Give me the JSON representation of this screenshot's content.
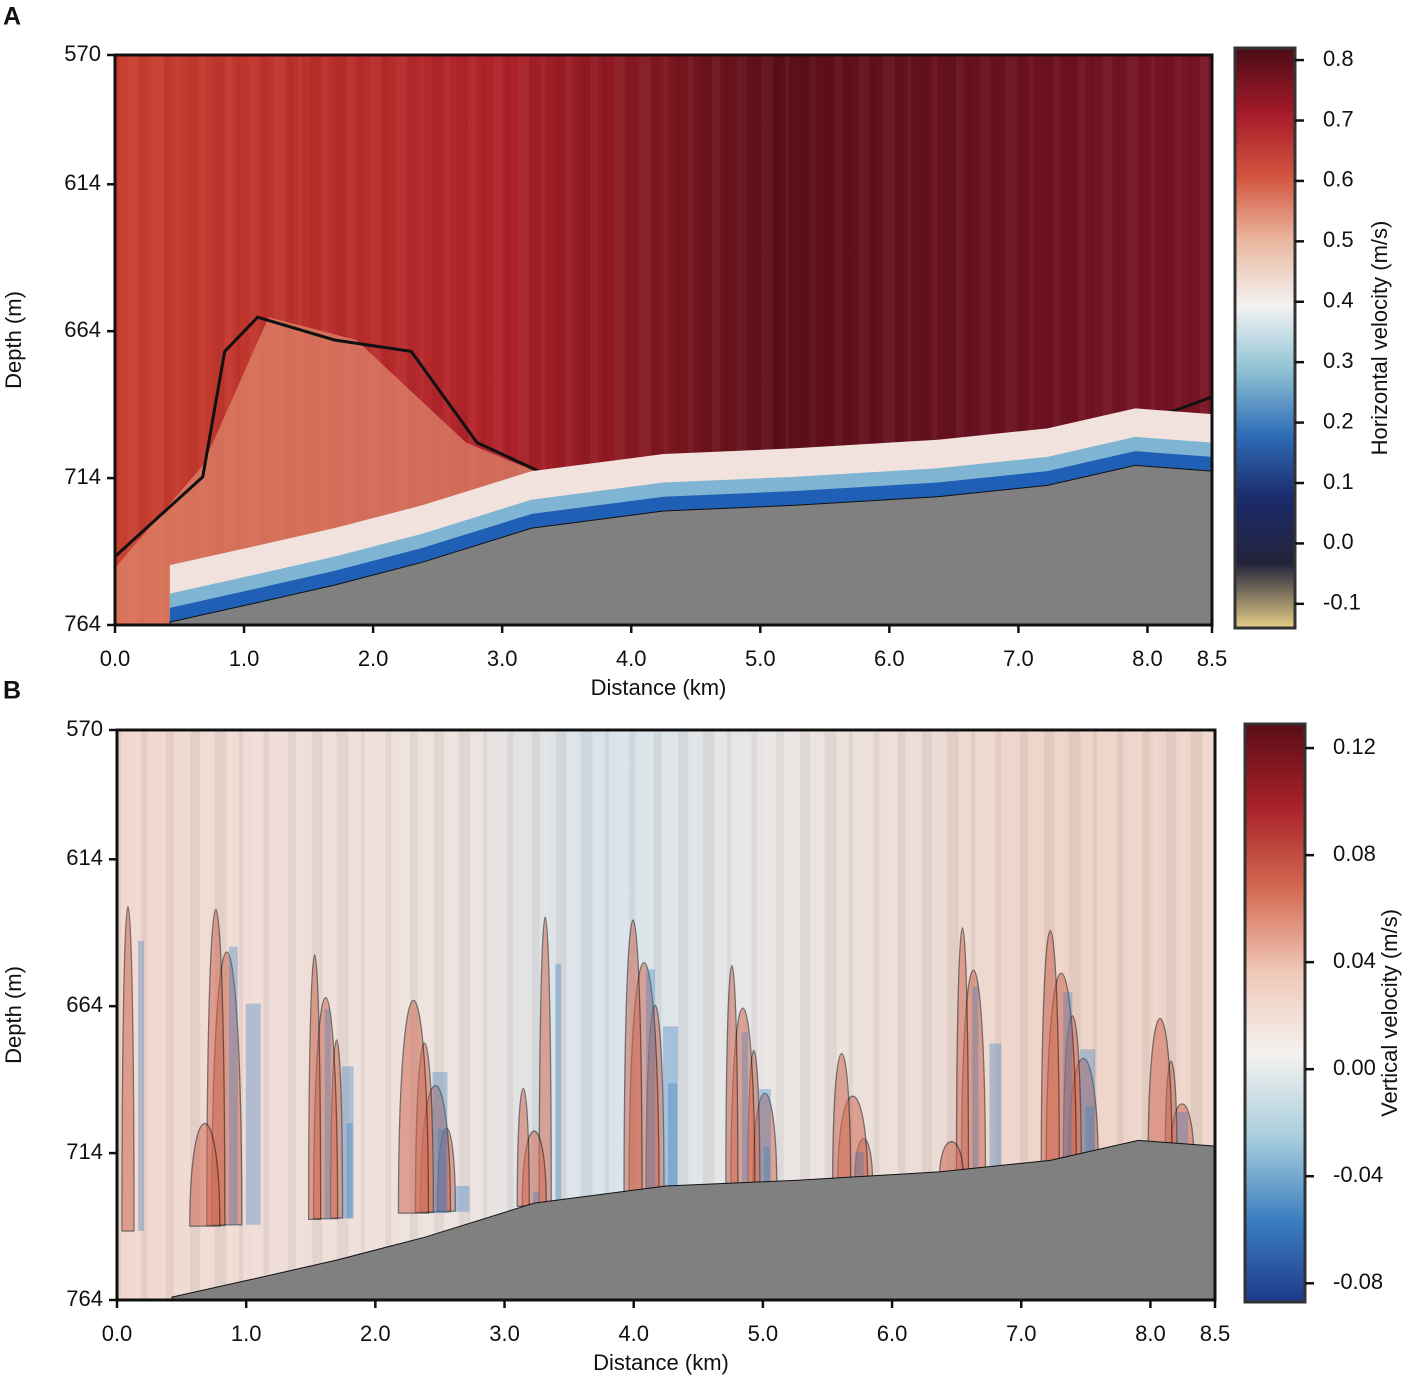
{
  "chart_data": [
    {
      "type": "heatmap",
      "panel_label": "A",
      "xlabel": "Distance (km)",
      "ylabel": "Depth (m)",
      "xlim": [
        0,
        8.5
      ],
      "xticks": [
        {
          "value": 0,
          "label": "0.0"
        },
        {
          "value": 1,
          "label": "1.0"
        },
        {
          "value": 2,
          "label": "2.0"
        },
        {
          "value": 3,
          "label": "3.0"
        },
        {
          "value": 4,
          "label": "4.0"
        },
        {
          "value": 5,
          "label": "5.0"
        },
        {
          "value": 6,
          "label": "6.0"
        },
        {
          "value": 7,
          "label": "7.0"
        },
        {
          "value": 8,
          "label": "8.0"
        },
        8.5
      ],
      "ylim": [
        570,
        764
      ],
      "yticks": [
        570,
        614,
        664,
        714,
        764
      ],
      "y_inverted": true,
      "colorbar": {
        "label": "Horizontal velocity (m/s)",
        "lim": [
          -0.14,
          0.82
        ],
        "ticks": [
          0.8,
          0.7,
          0.6,
          0.5,
          0.4,
          0.3,
          0.2,
          0.1,
          {
            "value": 0,
            "label": "0.0"
          },
          -0.1
        ],
        "colors": [
          "#4a0d16",
          "#a5192a",
          "#d3553f",
          "#ebb8a0",
          "#f2f2f2",
          "#8fc2d4",
          "#2f6db8",
          "#1b2a6a",
          "#23233a",
          "#e6cf87"
        ]
      }
    },
    {
      "type": "heatmap",
      "panel_label": "B",
      "xlabel": "Distance (km)",
      "ylabel": "Depth (m)",
      "xlim": [
        0,
        8.5
      ],
      "xticks": [
        {
          "value": 0,
          "label": "0.0"
        },
        {
          "value": 1,
          "label": "1.0"
        },
        {
          "value": 2,
          "label": "2.0"
        },
        {
          "value": 3,
          "label": "3.0"
        },
        {
          "value": 4,
          "label": "4.0"
        },
        {
          "value": 5,
          "label": "5.0"
        },
        {
          "value": 6,
          "label": "6.0"
        },
        {
          "value": 7,
          "label": "7.0"
        },
        {
          "value": 8,
          "label": "8.0"
        },
        8.5
      ],
      "ylim": [
        570,
        764
      ],
      "yticks": [
        570,
        614,
        664,
        714,
        764
      ],
      "y_inverted": true,
      "colorbar": {
        "label": "Vertical velocity (m/s)",
        "lim": [
          -0.087,
          0.129
        ],
        "ticks": [
          0.12,
          0.08,
          0.04,
          {
            "value": 0,
            "label": "0.00"
          },
          -0.04,
          -0.08
        ],
        "colors": [
          "#5a0d16",
          "#a8222a",
          "#d46a52",
          "#f0c8b8",
          "#f4f2f0",
          "#a9cedc",
          "#3c7fc0",
          "#1d3a8a"
        ]
      }
    }
  ]
}
